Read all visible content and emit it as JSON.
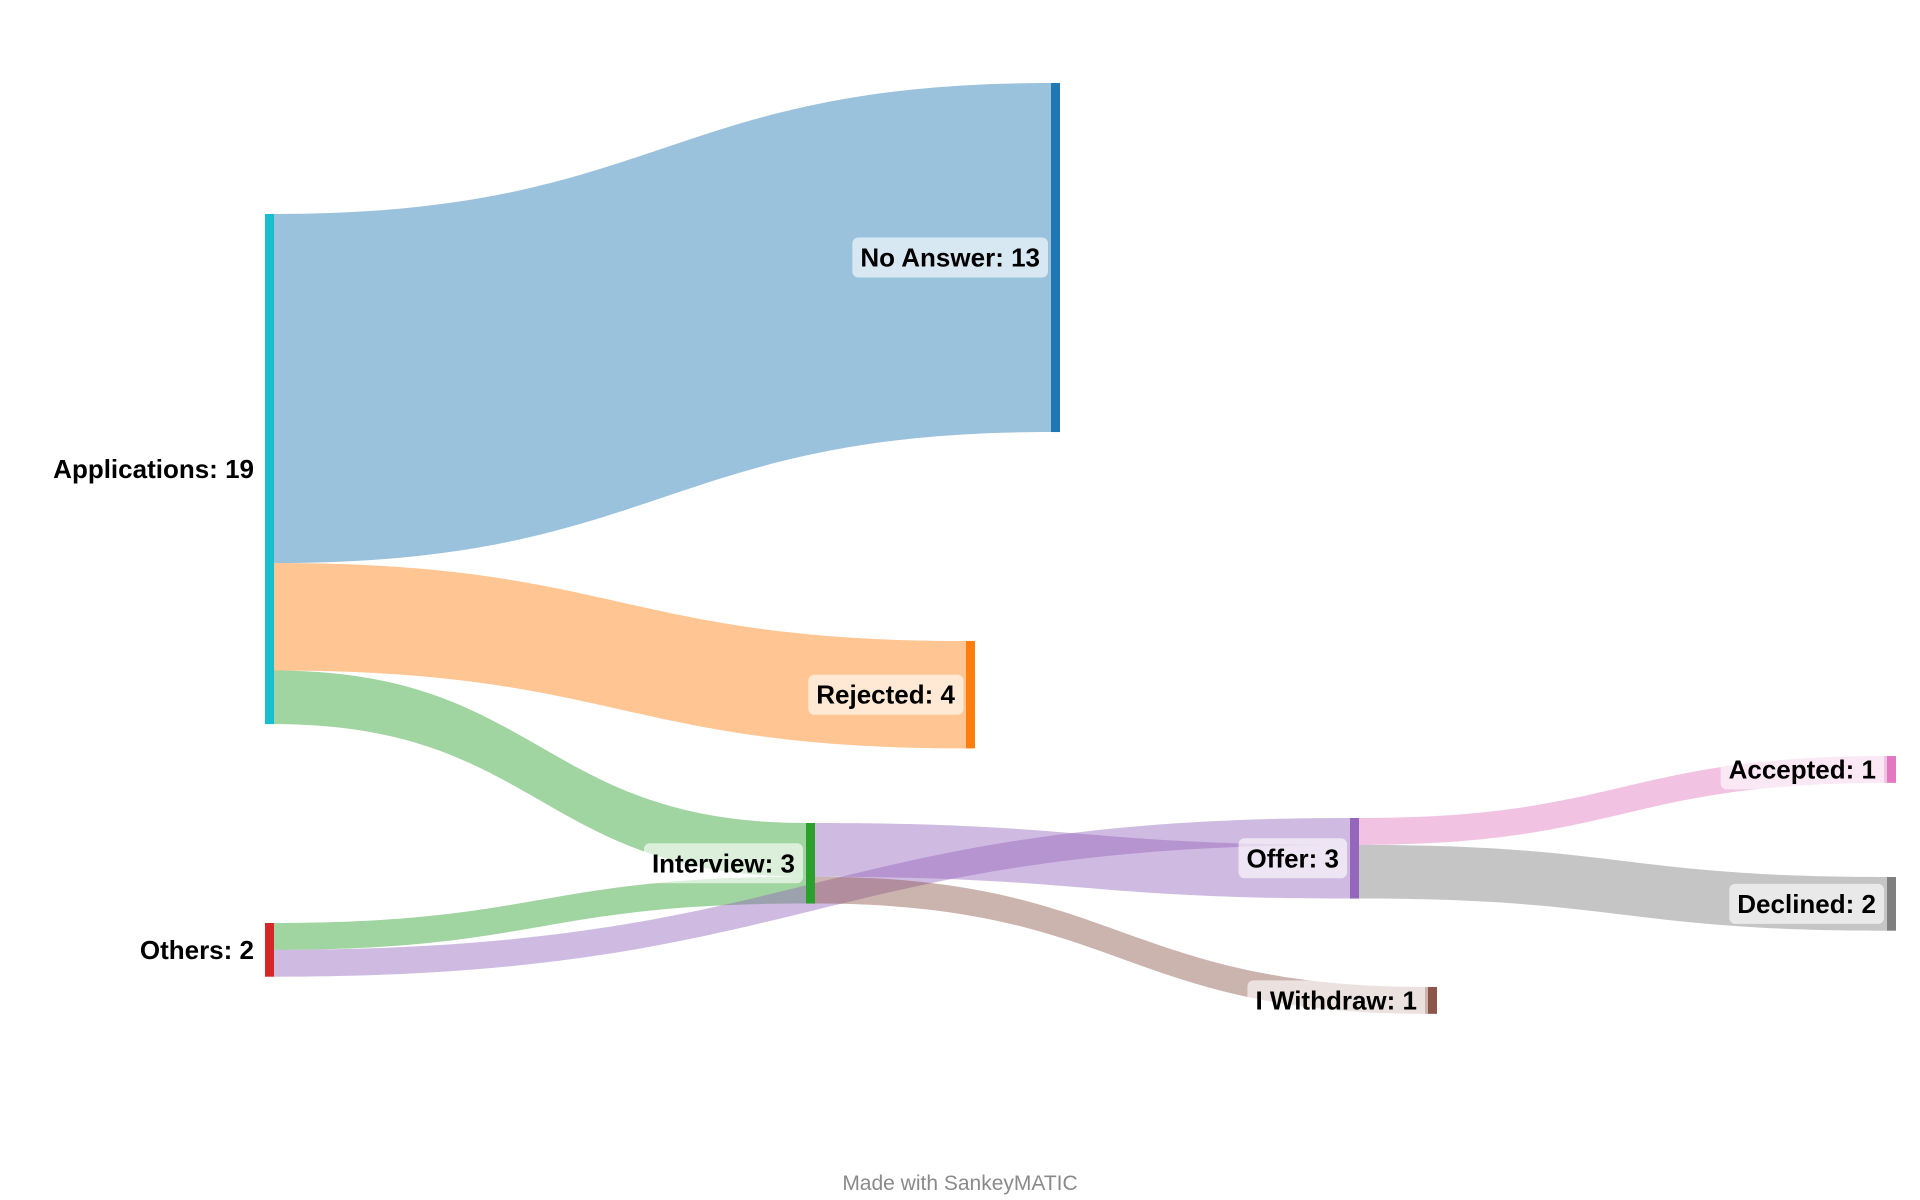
{
  "chart_data": {
    "type": "sankey",
    "nodes": [
      {
        "id": "applications",
        "label": "Applications: 19",
        "name": "Applications",
        "value": 19,
        "color": "#17becf"
      },
      {
        "id": "others",
        "label": "Others: 2",
        "name": "Others",
        "value": 2,
        "color": "#d62728"
      },
      {
        "id": "no_answer",
        "label": "No Answer: 13",
        "name": "No Answer",
        "value": 13,
        "color": "#1f77b4"
      },
      {
        "id": "rejected",
        "label": "Rejected: 4",
        "name": "Rejected",
        "value": 4,
        "color": "#ff7f0e"
      },
      {
        "id": "interview",
        "label": "Interview: 3",
        "name": "Interview",
        "value": 3,
        "color": "#2ca02c"
      },
      {
        "id": "offer",
        "label": "Offer: 3",
        "name": "Offer",
        "value": 3,
        "color": "#9467bd"
      },
      {
        "id": "withdraw",
        "label": "I Withdraw: 1",
        "name": "I Withdraw",
        "value": 1,
        "color": "#8c564b"
      },
      {
        "id": "accepted",
        "label": "Accepted: 1",
        "name": "Accepted",
        "value": 1,
        "color": "#e377c2"
      },
      {
        "id": "declined",
        "label": "Declined: 2",
        "name": "Declined",
        "value": 2,
        "color": "#7f7f7f"
      }
    ],
    "links": [
      {
        "source": "applications",
        "target": "no_answer",
        "value": 13
      },
      {
        "source": "applications",
        "target": "rejected",
        "value": 4
      },
      {
        "source": "applications",
        "target": "interview",
        "value": 2
      },
      {
        "source": "others",
        "target": "interview",
        "value": 1
      },
      {
        "source": "others",
        "target": "offer",
        "value": 1
      },
      {
        "source": "interview",
        "target": "offer",
        "value": 2
      },
      {
        "source": "interview",
        "target": "withdraw",
        "value": 1
      },
      {
        "source": "offer",
        "target": "accepted",
        "value": 1
      },
      {
        "source": "offer",
        "target": "declined",
        "value": 2
      }
    ]
  },
  "footer": {
    "credit": "Made with SankeyMATIC"
  }
}
